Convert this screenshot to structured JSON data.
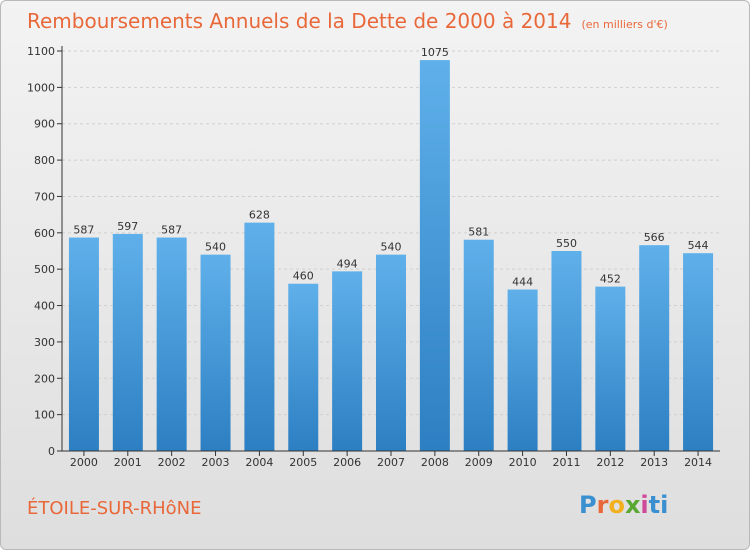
{
  "title": "Remboursements Annuels de la Dette de 2000 à 2014",
  "subtitle": "(en milliers d'€)",
  "commune": "ÉTOILE-SUR-RHôNE",
  "brand": "Proxiti",
  "colors": {
    "title": "#e8683a",
    "bar_top": "#5fb0ea",
    "bar_bottom": "#2c7fc2",
    "axis": "#333333",
    "grid": "#d0d0d0"
  },
  "chart_data": {
    "type": "bar",
    "title": "Remboursements Annuels de la Dette de 2000 à 2014",
    "subtitle": "(en milliers d'€)",
    "xlabel": "",
    "ylabel": "",
    "categories": [
      "2000",
      "2001",
      "2002",
      "2003",
      "2004",
      "2005",
      "2006",
      "2007",
      "2008",
      "2009",
      "2010",
      "2011",
      "2012",
      "2013",
      "2014"
    ],
    "values": [
      587,
      597,
      587,
      540,
      628,
      460,
      494,
      540,
      1075,
      581,
      444,
      550,
      452,
      566,
      544
    ],
    "ylim": [
      0,
      1100
    ],
    "yticks": [
      0,
      100,
      200,
      300,
      400,
      500,
      600,
      700,
      800,
      900,
      1000,
      1100
    ],
    "grid": true,
    "data_labels": true
  }
}
